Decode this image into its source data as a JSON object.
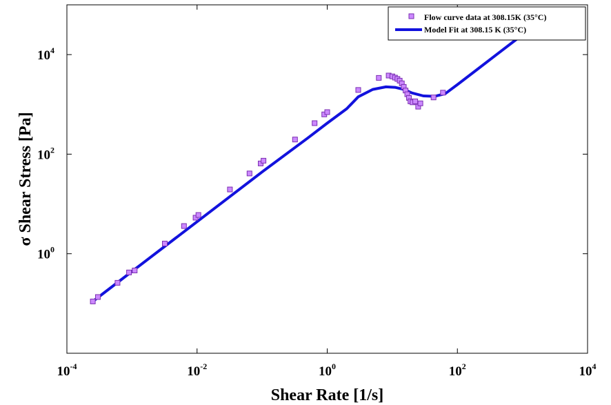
{
  "chart_data": {
    "type": "scatter",
    "xlabel": "Shear Rate [1/s]",
    "ylabel": "σ Shear Stress [Pa]",
    "xscale": "log",
    "yscale": "log",
    "xlim": [
      0.0001,
      10000
    ],
    "ylim": [
      0.01,
      100000
    ],
    "x_ticks": [
      {
        "value": 0.0001,
        "base": "10",
        "exp": "-4"
      },
      {
        "value": 0.01,
        "base": "10",
        "exp": "-2"
      },
      {
        "value": 1,
        "base": "10",
        "exp": "0"
      },
      {
        "value": 100,
        "base": "10",
        "exp": "2"
      },
      {
        "value": 10000,
        "base": "10",
        "exp": "4"
      }
    ],
    "y_ticks": [
      {
        "value": 1,
        "base": "10",
        "exp": "0"
      },
      {
        "value": 100,
        "base": "10",
        "exp": "2"
      },
      {
        "value": 10000,
        "base": "10",
        "exp": "4"
      }
    ],
    "grid": false,
    "legend_position": "top-right",
    "series": [
      {
        "name": "Flow curve data at 308.15K (35°C)",
        "kind": "markers",
        "marker": "square",
        "color": "#cc88ff",
        "points": [
          [
            0.00025,
            0.11
          ],
          [
            0.0003,
            0.135
          ],
          [
            0.0006,
            0.26
          ],
          [
            0.0009,
            0.42
          ],
          [
            0.0011,
            0.46
          ],
          [
            0.0032,
            1.6
          ],
          [
            0.0063,
            3.6
          ],
          [
            0.0095,
            5.3
          ],
          [
            0.0105,
            6.0
          ],
          [
            0.032,
            19.5
          ],
          [
            0.064,
            41
          ],
          [
            0.095,
            65
          ],
          [
            0.105,
            74
          ],
          [
            0.32,
            197
          ],
          [
            0.64,
            420
          ],
          [
            0.9,
            630
          ],
          [
            1.0,
            700
          ],
          [
            3.0,
            1950
          ],
          [
            6.2,
            3400
          ],
          [
            8.8,
            3800
          ],
          [
            10.0,
            3650
          ],
          [
            11.0,
            3450
          ],
          [
            12.0,
            3250
          ],
          [
            13.0,
            3000
          ],
          [
            14.0,
            2650
          ],
          [
            15.0,
            2250
          ],
          [
            16.0,
            1900
          ],
          [
            17.0,
            1600
          ],
          [
            18.0,
            1350
          ],
          [
            19.0,
            1150
          ],
          [
            20.5,
            1100
          ],
          [
            22.5,
            1150
          ],
          [
            25.0,
            900
          ],
          [
            27.0,
            1050
          ],
          [
            43.0,
            1380
          ],
          [
            60.0,
            1720
          ]
        ]
      },
      {
        "name": "Model Fit at 308.15 K (35°C)",
        "kind": "line",
        "color": "#1212dd",
        "points": [
          [
            0.00025,
            0.11
          ],
          [
            0.001,
            0.44
          ],
          [
            0.01,
            4.4
          ],
          [
            0.1,
            44
          ],
          [
            0.5,
            210
          ],
          [
            1.0,
            420
          ],
          [
            2.0,
            820
          ],
          [
            3.0,
            1420
          ],
          [
            5.0,
            2000
          ],
          [
            8.0,
            2250
          ],
          [
            11.0,
            2200
          ],
          [
            15.0,
            2000
          ],
          [
            20.0,
            1700
          ],
          [
            30.0,
            1480
          ],
          [
            45.0,
            1450
          ],
          [
            65.0,
            1640
          ],
          [
            100.0,
            2500
          ],
          [
            200.0,
            5000
          ],
          [
            400.0,
            10000
          ],
          [
            1000.0,
            25000
          ]
        ]
      }
    ]
  }
}
